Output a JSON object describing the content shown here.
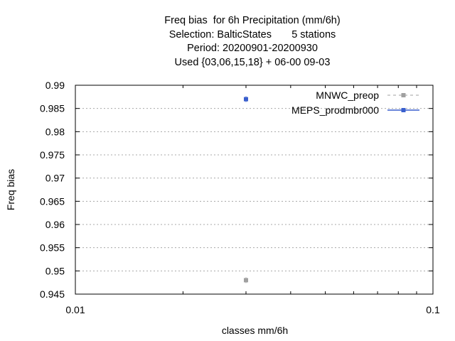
{
  "chart_data": {
    "type": "scatter",
    "title_lines": [
      "Freq bias  for 6h Precipitation (mm/6h)",
      "Selection: BalticStates       5 stations",
      "Period: 20200901-20200930",
      "Used {03,06,15,18} + 06-00 09-03"
    ],
    "xlabel": "classes mm/6h",
    "ylabel": "Freq bias",
    "x_scale": "log",
    "xlim": [
      0.01,
      0.1
    ],
    "ylim": [
      0.945,
      0.99
    ],
    "x_ticks": [
      {
        "value": 0.01,
        "label": "0.01"
      },
      {
        "value": 0.1,
        "label": "0.1"
      }
    ],
    "y_ticks": [
      {
        "value": 0.945,
        "label": "0.945"
      },
      {
        "value": 0.95,
        "label": "0.95"
      },
      {
        "value": 0.955,
        "label": "0.955"
      },
      {
        "value": 0.96,
        "label": "0.96"
      },
      {
        "value": 0.965,
        "label": "0.965"
      },
      {
        "value": 0.97,
        "label": "0.97"
      },
      {
        "value": 0.975,
        "label": "0.975"
      },
      {
        "value": 0.98,
        "label": "0.98"
      },
      {
        "value": 0.985,
        "label": "0.985"
      },
      {
        "value": 0.99,
        "label": "0.99"
      }
    ],
    "grid": true,
    "legend_position": "top-right",
    "series": [
      {
        "name": "MNWC_preop",
        "color": "#a0a0a0",
        "line_style": "dashed",
        "points": [
          {
            "x": 0.03,
            "y": 0.948
          }
        ]
      },
      {
        "name": "MEPS_prodmbr000",
        "color": "#3a5fcd",
        "line_style": "solid",
        "points": [
          {
            "x": 0.03,
            "y": 0.987
          }
        ]
      }
    ]
  }
}
